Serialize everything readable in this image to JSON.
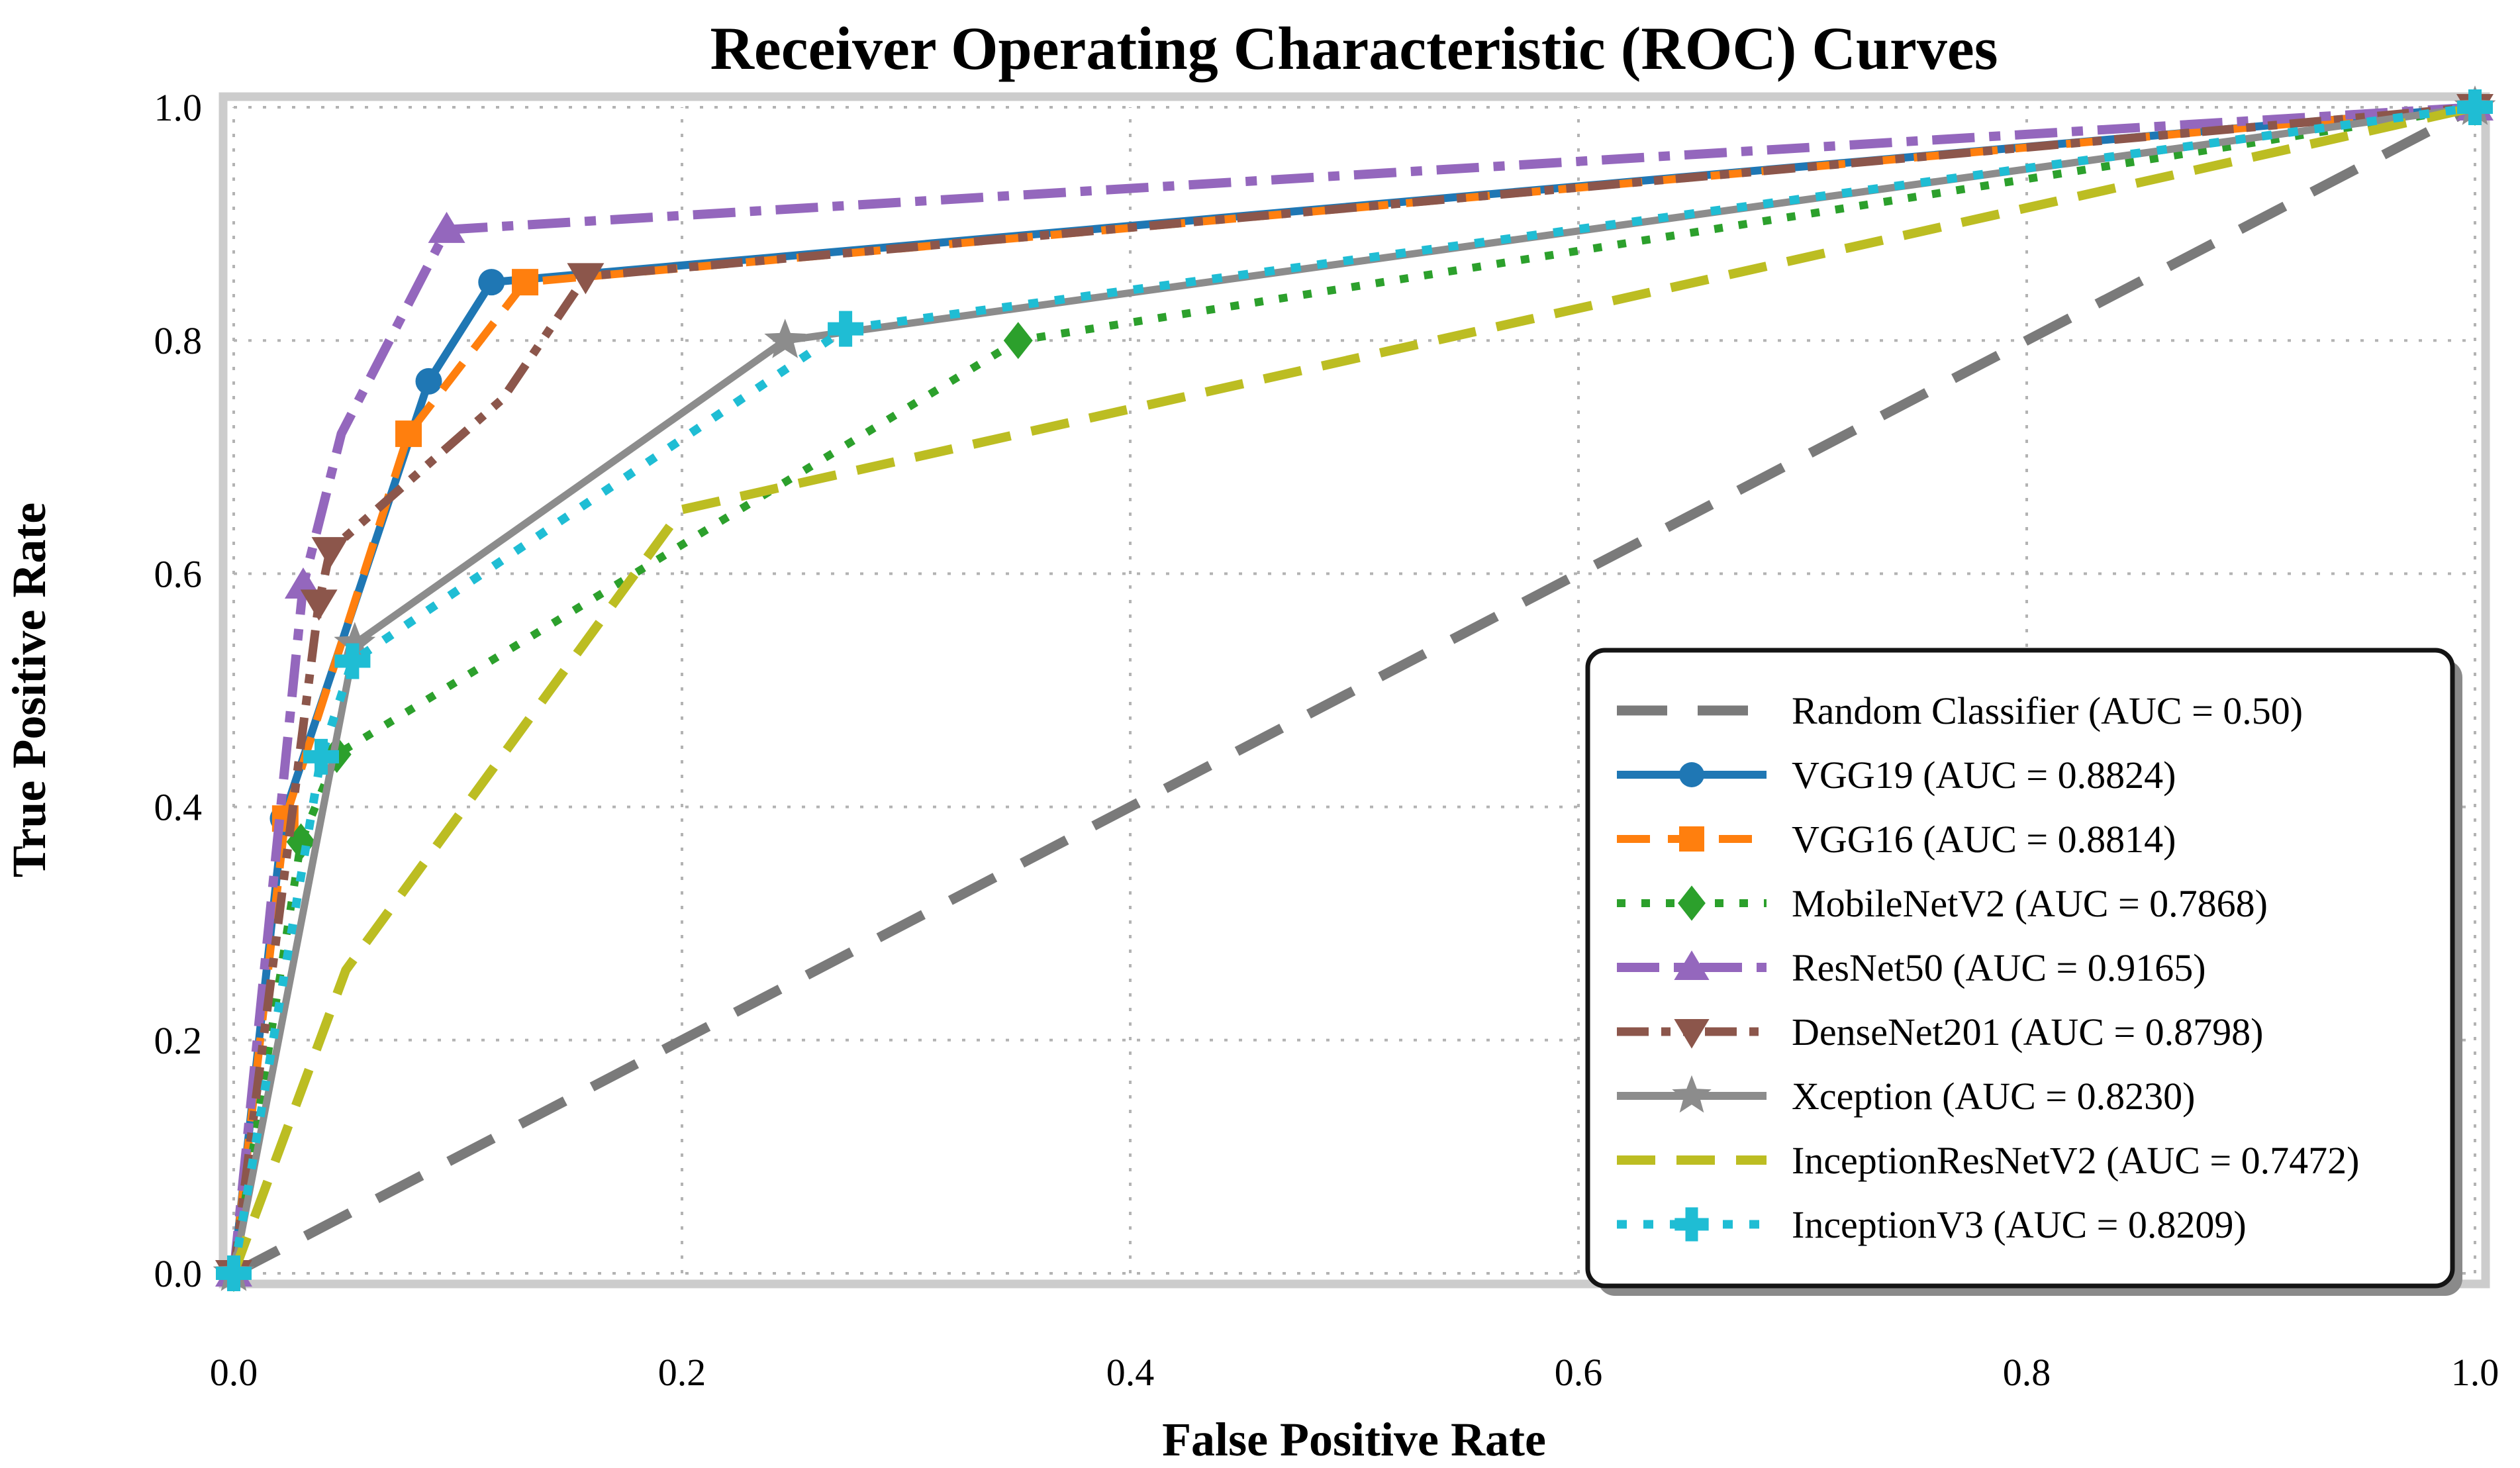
{
  "figure": {
    "title": "Receiver Operating Characteristic (ROC) Curves",
    "x_axis": {
      "label": "False Positive Rate",
      "ticks": [
        "0.0",
        "0.2",
        "0.4",
        "0.6",
        "0.8",
        "1.0"
      ]
    },
    "y_axis": {
      "label": "True Positive Rate",
      "ticks": [
        "0.0",
        "0.2",
        "0.4",
        "0.6",
        "0.8",
        "1.0"
      ]
    }
  },
  "chart_data": {
    "type": "line",
    "title": "Receiver Operating Characteristic (ROC) Curves",
    "xlabel": "False Positive Rate",
    "ylabel": "True Positive Rate",
    "xlim": [
      0,
      1
    ],
    "ylim": [
      0,
      1
    ],
    "grid": "dotted",
    "legend_position": "lower right",
    "series": [
      {
        "name": "Random Classifier",
        "auc": "0.50",
        "legend_label": "Random Classifier (AUC = 0.50)",
        "color": "#7a7a7a",
        "line_style": "dashed",
        "dash": [
          76,
          46
        ],
        "line_width": 15,
        "marker": "none",
        "points": [
          [
            0.0,
            0.0
          ],
          [
            1.0,
            1.0
          ]
        ]
      },
      {
        "name": "VGG19",
        "auc": "0.8824",
        "legend_label": "VGG19 (AUC = 0.8824)",
        "color": "#1f77b4",
        "line_style": "solid",
        "dash": [],
        "line_width": 12,
        "marker": "circle",
        "points": [
          [
            0.0,
            0.0
          ],
          [
            0.022,
            0.39
          ],
          [
            0.087,
            0.765
          ],
          [
            0.115,
            0.85
          ],
          [
            1.0,
            1.0
          ]
        ]
      },
      {
        "name": "VGG16",
        "auc": "0.8814",
        "legend_label": "VGG16 (AUC = 0.8814)",
        "color": "#ff7f0e",
        "line_style": "dashed",
        "dash": [
          50,
          27
        ],
        "line_width": 12,
        "marker": "square",
        "points": [
          [
            0.0,
            0.0
          ],
          [
            0.023,
            0.39
          ],
          [
            0.078,
            0.72
          ],
          [
            0.13,
            0.85
          ],
          [
            1.0,
            1.0
          ]
        ]
      },
      {
        "name": "MobileNetV2",
        "auc": "0.7868",
        "legend_label": "MobileNetV2 (AUC = 0.7868)",
        "color": "#2ca02c",
        "line_style": "dotted",
        "dash": [
          13,
          24
        ],
        "line_width": 12,
        "marker": "diamond",
        "points": [
          [
            0.0,
            0.0
          ],
          [
            0.03,
            0.37
          ],
          [
            0.046,
            0.445
          ],
          [
            0.35,
            0.8
          ],
          [
            1.0,
            1.0
          ]
        ]
      },
      {
        "name": "ResNet50",
        "auc": "0.9165",
        "legend_label": "ResNet50 (AUC = 0.9165)",
        "color": "#9467bd",
        "line_style": "dashdot",
        "dash": [
          64,
          22,
          17,
          22
        ],
        "line_width": 14,
        "marker": "triangle-up",
        "points": [
          [
            0.0,
            0.0
          ],
          [
            0.031,
            0.59
          ],
          [
            0.048,
            0.72
          ],
          [
            0.095,
            0.895
          ],
          [
            1.0,
            1.0
          ]
        ],
        "marker_points": [
          [
            0.0,
            0.0
          ],
          [
            0.031,
            0.59
          ],
          [
            0.095,
            0.895
          ],
          [
            1.0,
            1.0
          ]
        ]
      },
      {
        "name": "DenseNet201",
        "auc": "0.8798",
        "legend_label": "DenseNet201 (AUC = 0.8798)",
        "color": "#8c564b",
        "line_style": "dashdotdot",
        "dash": [
          48,
          19,
          14,
          19,
          14,
          19
        ],
        "line_width": 13,
        "marker": "triangle-down",
        "points": [
          [
            0.0,
            0.0
          ],
          [
            0.038,
            0.575
          ],
          [
            0.043,
            0.62
          ],
          [
            0.12,
            0.75
          ],
          [
            0.157,
            0.855
          ],
          [
            1.0,
            1.0
          ]
        ],
        "marker_points": [
          [
            0.0,
            0.0
          ],
          [
            0.038,
            0.575
          ],
          [
            0.043,
            0.62
          ],
          [
            0.157,
            0.855
          ],
          [
            1.0,
            1.0
          ]
        ]
      },
      {
        "name": "Xception",
        "auc": "0.8230",
        "legend_label": "Xception (AUC = 0.8230)",
        "color": "#8c8c8c",
        "line_style": "solid",
        "dash": [],
        "line_width": 11,
        "marker": "star",
        "points": [
          [
            0.0,
            0.0
          ],
          [
            0.054,
            0.54
          ],
          [
            0.246,
            0.8
          ],
          [
            1.0,
            1.0
          ]
        ]
      },
      {
        "name": "InceptionResNetV2",
        "auc": "0.7472",
        "legend_label": "InceptionResNetV2 (AUC = 0.7472)",
        "color": "#bcbd22",
        "line_style": "dashed",
        "dash": [
          58,
          32
        ],
        "line_width": 14,
        "marker": "none",
        "points": [
          [
            0.0,
            0.0
          ],
          [
            0.05,
            0.26
          ],
          [
            0.2,
            0.655
          ],
          [
            1.0,
            1.0
          ]
        ]
      },
      {
        "name": "InceptionV3",
        "auc": "0.8209",
        "legend_label": "InceptionV3 (AUC = 0.8209)",
        "color": "#1fbdd4",
        "line_style": "dotted",
        "dash": [
          15,
          25
        ],
        "line_width": 13,
        "marker": "plus",
        "points": [
          [
            0.0,
            0.0
          ],
          [
            0.039,
            0.443
          ],
          [
            0.053,
            0.525
          ],
          [
            0.273,
            0.81
          ],
          [
            1.0,
            1.0
          ]
        ]
      }
    ]
  }
}
